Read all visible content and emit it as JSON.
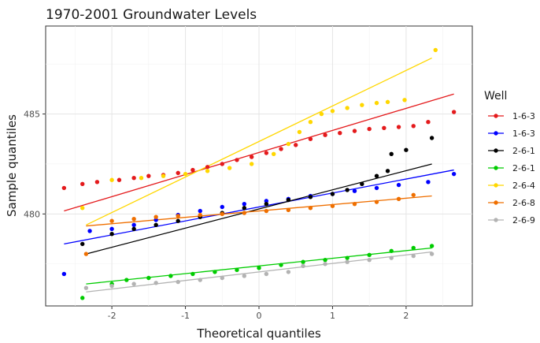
{
  "chart_data": {
    "type": "scatter",
    "subtype": "qq-plot",
    "title": "1970-2001 Groundwater Levels",
    "xlabel": "Theoretical quantiles",
    "ylabel": "Sample quantiles",
    "xlim": [
      -2.9,
      2.9
    ],
    "ylim": [
      475.4,
      489.4
    ],
    "xticks": [
      -2,
      -1,
      0,
      1,
      2
    ],
    "yticks": [
      480,
      485
    ],
    "grid": true,
    "legend": {
      "title": "Well",
      "placement": "right"
    },
    "series": [
      {
        "name": "1-6-3",
        "color": "#e41a1c",
        "line": {
          "x": [
            -2.65,
            2.65
          ],
          "y": [
            480.15,
            486.0
          ]
        },
        "points": [
          [
            -2.65,
            481.3
          ],
          [
            -2.4,
            481.5
          ],
          [
            -2.2,
            481.6
          ],
          [
            -1.9,
            481.7
          ],
          [
            -1.7,
            481.8
          ],
          [
            -1.5,
            481.9
          ],
          [
            -1.3,
            481.95
          ],
          [
            -1.1,
            482.05
          ],
          [
            -0.9,
            482.2
          ],
          [
            -0.7,
            482.35
          ],
          [
            -0.5,
            482.5
          ],
          [
            -0.3,
            482.7
          ],
          [
            -0.1,
            482.85
          ],
          [
            0.1,
            483.05
          ],
          [
            0.3,
            483.25
          ],
          [
            0.5,
            483.45
          ],
          [
            0.7,
            483.75
          ],
          [
            0.9,
            483.95
          ],
          [
            1.1,
            484.05
          ],
          [
            1.3,
            484.15
          ],
          [
            1.5,
            484.25
          ],
          [
            1.7,
            484.3
          ],
          [
            1.9,
            484.35
          ],
          [
            2.1,
            484.4
          ],
          [
            2.3,
            484.6
          ],
          [
            2.65,
            485.1
          ]
        ]
      },
      {
        "name": "1-6-3",
        "color": "#0000ff",
        "line": {
          "x": [
            -2.65,
            2.65
          ],
          "y": [
            478.5,
            482.2
          ]
        },
        "points": [
          [
            -2.65,
            477.0
          ],
          [
            -2.3,
            479.15
          ],
          [
            -2.0,
            479.25
          ],
          [
            -1.7,
            479.45
          ],
          [
            -1.4,
            479.7
          ],
          [
            -1.1,
            479.95
          ],
          [
            -0.8,
            480.15
          ],
          [
            -0.5,
            480.35
          ],
          [
            -0.2,
            480.5
          ],
          [
            0.1,
            480.65
          ],
          [
            0.4,
            480.75
          ],
          [
            0.7,
            480.9
          ],
          [
            1.0,
            481.0
          ],
          [
            1.3,
            481.15
          ],
          [
            1.6,
            481.3
          ],
          [
            1.9,
            481.45
          ],
          [
            2.3,
            481.6
          ],
          [
            2.65,
            482.0
          ]
        ]
      },
      {
        "name": "2-6-1",
        "color": "#000000",
        "line": {
          "x": [
            -2.35,
            2.35
          ],
          "y": [
            478.0,
            482.5
          ]
        },
        "points": [
          [
            -2.4,
            478.5
          ],
          [
            -2.0,
            479.0
          ],
          [
            -1.7,
            479.25
          ],
          [
            -1.4,
            479.45
          ],
          [
            -1.1,
            479.65
          ],
          [
            -0.8,
            479.85
          ],
          [
            -0.5,
            480.05
          ],
          [
            -0.2,
            480.3
          ],
          [
            0.1,
            480.5
          ],
          [
            0.4,
            480.7
          ],
          [
            0.7,
            480.85
          ],
          [
            1.0,
            481.0
          ],
          [
            1.2,
            481.2
          ],
          [
            1.4,
            481.5
          ],
          [
            1.6,
            481.9
          ],
          [
            1.75,
            482.15
          ],
          [
            1.8,
            483.0
          ],
          [
            2.0,
            483.2
          ],
          [
            2.35,
            483.8
          ]
        ]
      },
      {
        "name": "2-6-1",
        "color": "#00cc00",
        "line": {
          "x": [
            -2.35,
            2.35
          ],
          "y": [
            476.5,
            478.3
          ]
        },
        "points": [
          [
            -2.4,
            475.8
          ],
          [
            -2.0,
            476.5
          ],
          [
            -1.8,
            476.7
          ],
          [
            -1.5,
            476.8
          ],
          [
            -1.2,
            476.9
          ],
          [
            -0.9,
            477.0
          ],
          [
            -0.6,
            477.1
          ],
          [
            -0.3,
            477.2
          ],
          [
            0.0,
            477.3
          ],
          [
            0.3,
            477.45
          ],
          [
            0.6,
            477.6
          ],
          [
            0.9,
            477.7
          ],
          [
            1.2,
            477.8
          ],
          [
            1.5,
            477.95
          ],
          [
            1.8,
            478.15
          ],
          [
            2.1,
            478.3
          ],
          [
            2.35,
            478.4
          ]
        ]
      },
      {
        "name": "2-6-4",
        "color": "#ffd700",
        "line": {
          "x": [
            -2.35,
            2.35
          ],
          "y": [
            479.45,
            487.8
          ]
        },
        "points": [
          [
            -2.4,
            480.3
          ],
          [
            -2.0,
            481.7
          ],
          [
            -1.6,
            481.8
          ],
          [
            -1.3,
            481.9
          ],
          [
            -1.0,
            482.0
          ],
          [
            -0.7,
            482.15
          ],
          [
            -0.4,
            482.3
          ],
          [
            -0.1,
            482.5
          ],
          [
            0.2,
            483.0
          ],
          [
            0.4,
            483.5
          ],
          [
            0.55,
            484.1
          ],
          [
            0.7,
            484.6
          ],
          [
            0.85,
            485.0
          ],
          [
            1.0,
            485.15
          ],
          [
            1.2,
            485.3
          ],
          [
            1.4,
            485.45
          ],
          [
            1.6,
            485.55
          ],
          [
            1.75,
            485.6
          ],
          [
            1.98,
            485.7
          ],
          [
            2.4,
            488.2
          ]
        ]
      },
      {
        "name": "2-6-8",
        "color": "#ef6f00",
        "line": {
          "x": [
            -2.35,
            2.35
          ],
          "y": [
            479.4,
            480.9
          ]
        },
        "points": [
          [
            -2.35,
            478.0
          ],
          [
            -2.0,
            479.65
          ],
          [
            -1.7,
            479.75
          ],
          [
            -1.4,
            479.85
          ],
          [
            -1.1,
            479.9
          ],
          [
            -0.8,
            479.95
          ],
          [
            -0.5,
            480.0
          ],
          [
            -0.2,
            480.05
          ],
          [
            0.1,
            480.15
          ],
          [
            0.4,
            480.2
          ],
          [
            0.7,
            480.3
          ],
          [
            1.0,
            480.4
          ],
          [
            1.3,
            480.5
          ],
          [
            1.6,
            480.6
          ],
          [
            1.9,
            480.75
          ],
          [
            2.1,
            480.95
          ]
        ]
      },
      {
        "name": "2-6-9",
        "color": "#b3b3b3",
        "line": {
          "x": [
            -2.35,
            2.35
          ],
          "y": [
            476.1,
            478.1
          ]
        },
        "points": [
          [
            -2.35,
            476.3
          ],
          [
            -2.0,
            476.4
          ],
          [
            -1.7,
            476.5
          ],
          [
            -1.4,
            476.55
          ],
          [
            -1.1,
            476.6
          ],
          [
            -0.8,
            476.7
          ],
          [
            -0.5,
            476.8
          ],
          [
            -0.2,
            476.9
          ],
          [
            0.1,
            477.0
          ],
          [
            0.4,
            477.1
          ],
          [
            0.6,
            477.4
          ],
          [
            0.9,
            477.5
          ],
          [
            1.2,
            477.6
          ],
          [
            1.5,
            477.7
          ],
          [
            1.8,
            477.8
          ],
          [
            2.1,
            477.9
          ],
          [
            2.35,
            478.0
          ]
        ]
      }
    ]
  }
}
